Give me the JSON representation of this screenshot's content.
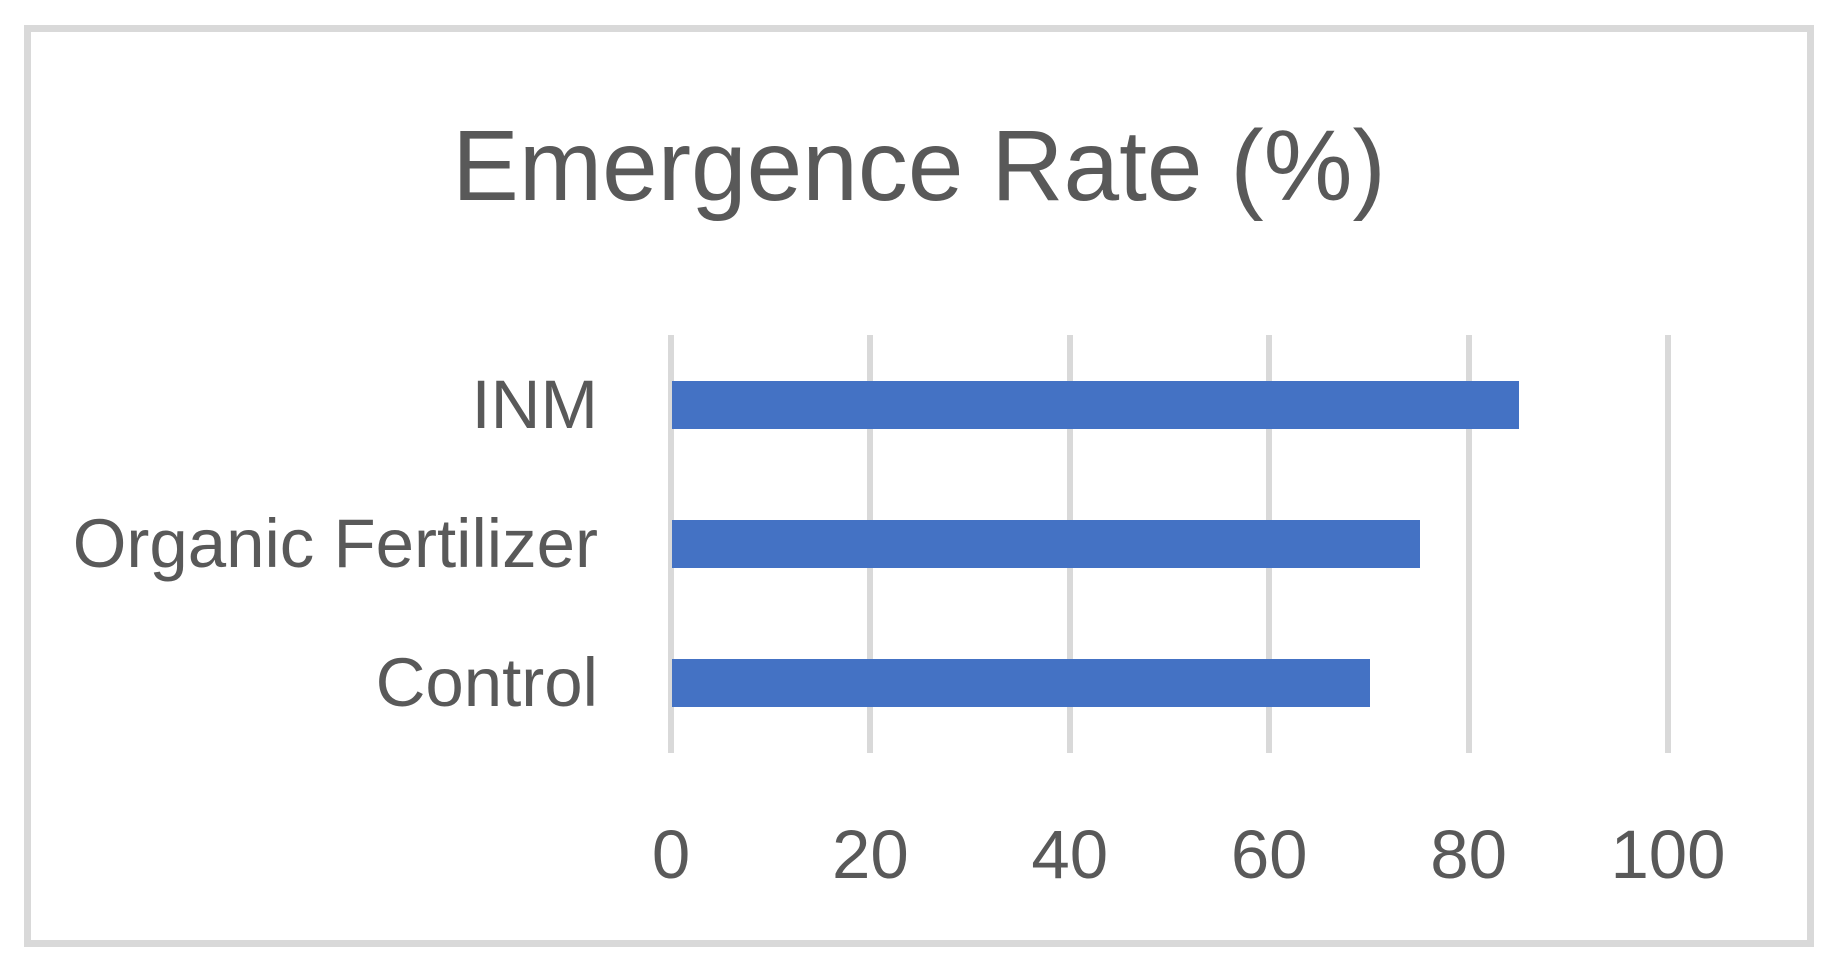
{
  "chart": {
    "title": "Emergence Rate (%)"
  },
  "chart_data": {
    "type": "bar",
    "orientation": "horizontal",
    "title": "Emergence Rate (%)",
    "categories": [
      "INM",
      "Organic Fertilizer",
      "Control"
    ],
    "values": [
      85,
      75,
      70
    ],
    "xlabel": "",
    "ylabel": "",
    "xlim": [
      0,
      100
    ],
    "xticks": [
      0,
      20,
      40,
      60,
      80,
      100
    ],
    "grid": "vertical-gridlines-only",
    "legend_position": "none",
    "colors": {
      "bar": "#4472C4",
      "gridline": "#D9D9D9",
      "frame_border": "#D9D9D9",
      "text": "#595959",
      "background": "#FFFFFF"
    }
  }
}
